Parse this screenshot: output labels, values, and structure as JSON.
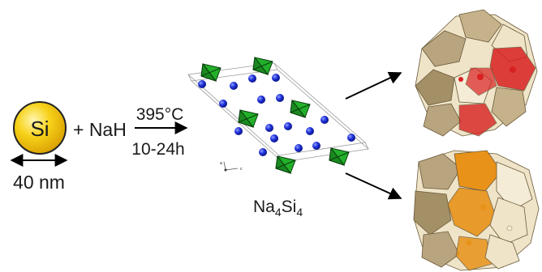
{
  "particle": {
    "label": "Si",
    "size_label": "40 nm",
    "color": "#f2c200"
  },
  "reaction": {
    "plus_reagent": "+ NaH",
    "temperature": "395°C",
    "time": "10-24h"
  },
  "intermediate": {
    "formula_main": "Na",
    "formula_sub1": "4",
    "formula_main2": "Si",
    "formula_sub2": "4"
  },
  "axis_tiny_labels": [
    "a",
    "c"
  ],
  "colors": {
    "sodium": "#1c2ed6",
    "silicon_tetrahedra": "#22b02a",
    "clathrate_shell": "#b8a47e",
    "clathrate_red": "#d92020",
    "clathrate_orange": "#e8921a"
  },
  "icons": [
    "double-arrow-icon",
    "reaction-arrow-icon",
    "branch-arrow-icon"
  ]
}
